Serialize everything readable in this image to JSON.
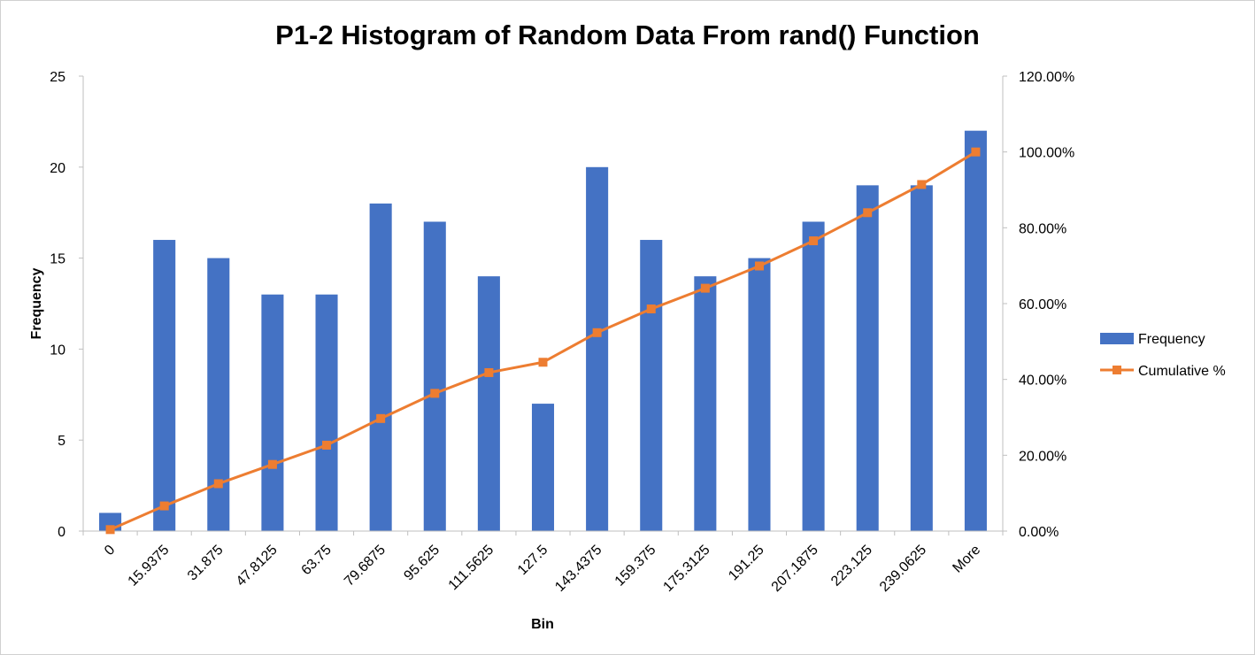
{
  "chart_data": {
    "type": "bar",
    "title": "P1-2 Histogram of Random Data From rand() Function",
    "xlabel": "Bin",
    "ylabel": "Frequency",
    "categories": [
      "0",
      "15.9375",
      "31.875",
      "47.8125",
      "63.75",
      "79.6875",
      "95.625",
      "111.5625",
      "127.5",
      "143.4375",
      "159.375",
      "175.3125",
      "191.25",
      "207.1875",
      "223.125",
      "239.0625",
      "More"
    ],
    "series": [
      {
        "name": "Frequency",
        "type": "bar",
        "axis": "left",
        "color": "#4472C4",
        "values": [
          1,
          16,
          15,
          13,
          13,
          18,
          17,
          14,
          7,
          20,
          16,
          14,
          15,
          17,
          19,
          19,
          22
        ]
      },
      {
        "name": "Cumulative %",
        "type": "line",
        "axis": "right",
        "color": "#ED7D31",
        "marker": "square",
        "values": [
          0.39,
          6.64,
          12.5,
          17.58,
          22.66,
          29.69,
          36.33,
          41.8,
          44.53,
          52.34,
          58.59,
          64.06,
          69.92,
          76.56,
          83.98,
          91.41,
          100.0
        ]
      }
    ],
    "ylim": [
      0,
      25
    ],
    "yticks": [
      0,
      5,
      10,
      15,
      20,
      25
    ],
    "y2lim": [
      0,
      120
    ],
    "y2ticks": [
      0,
      20,
      40,
      60,
      80,
      100,
      120
    ],
    "y2tick_labels": [
      "0.00%",
      "20.00%",
      "40.00%",
      "60.00%",
      "80.00%",
      "100.00%",
      "120.00%"
    ],
    "grid": false,
    "legend_position": "right"
  }
}
